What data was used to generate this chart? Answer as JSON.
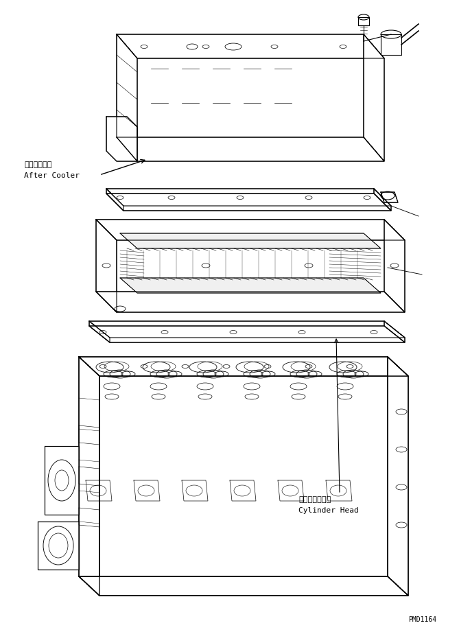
{
  "background_color": "#ffffff",
  "line_color": "#000000",
  "line_width": 0.8,
  "label_after_cooler_jp": "アフタクーラ",
  "label_after_cooler_en": "After Cooler",
  "label_cylinder_head_jp": "シリンダヘッド",
  "label_cylinder_head_en": "Cylinder Head",
  "watermark": "PMD1164",
  "fig_width": 6.69,
  "fig_height": 9.21,
  "dpi": 100
}
